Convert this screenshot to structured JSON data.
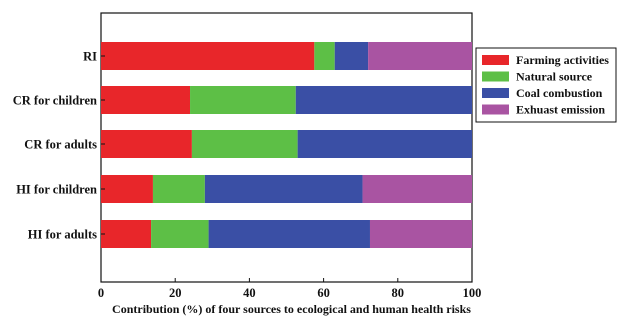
{
  "chart_data": {
    "type": "bar",
    "orientation": "horizontal",
    "stacked": true,
    "title": "",
    "xlabel": "Contribution (%) of four sources to ecological and human health risks",
    "ylabel": "",
    "xlim": [
      0,
      100
    ],
    "x_ticks": [
      "0",
      "20",
      "40",
      "60",
      "80",
      "100"
    ],
    "grid": false,
    "legend_position": "right",
    "categories": [
      "RI",
      "CR for children",
      "CR for adults",
      "HI for children",
      "HI for adults"
    ],
    "series": [
      {
        "name": "Farming activities",
        "color": "#e8262a",
        "values": [
          57.5,
          24.0,
          24.5,
          14.0,
          13.5
        ]
      },
      {
        "name": "Natural source",
        "color": "#5dbf46",
        "values": [
          5.5,
          28.5,
          28.5,
          14.0,
          15.5
        ]
      },
      {
        "name": "Coal combustion",
        "color": "#3a4fa5",
        "values": [
          9.0,
          47.5,
          47.0,
          42.5,
          43.5
        ]
      },
      {
        "name": "Exhuast emission",
        "color": "#a954a2",
        "values": [
          28.0,
          0.0,
          0.0,
          29.5,
          27.5
        ]
      }
    ]
  }
}
